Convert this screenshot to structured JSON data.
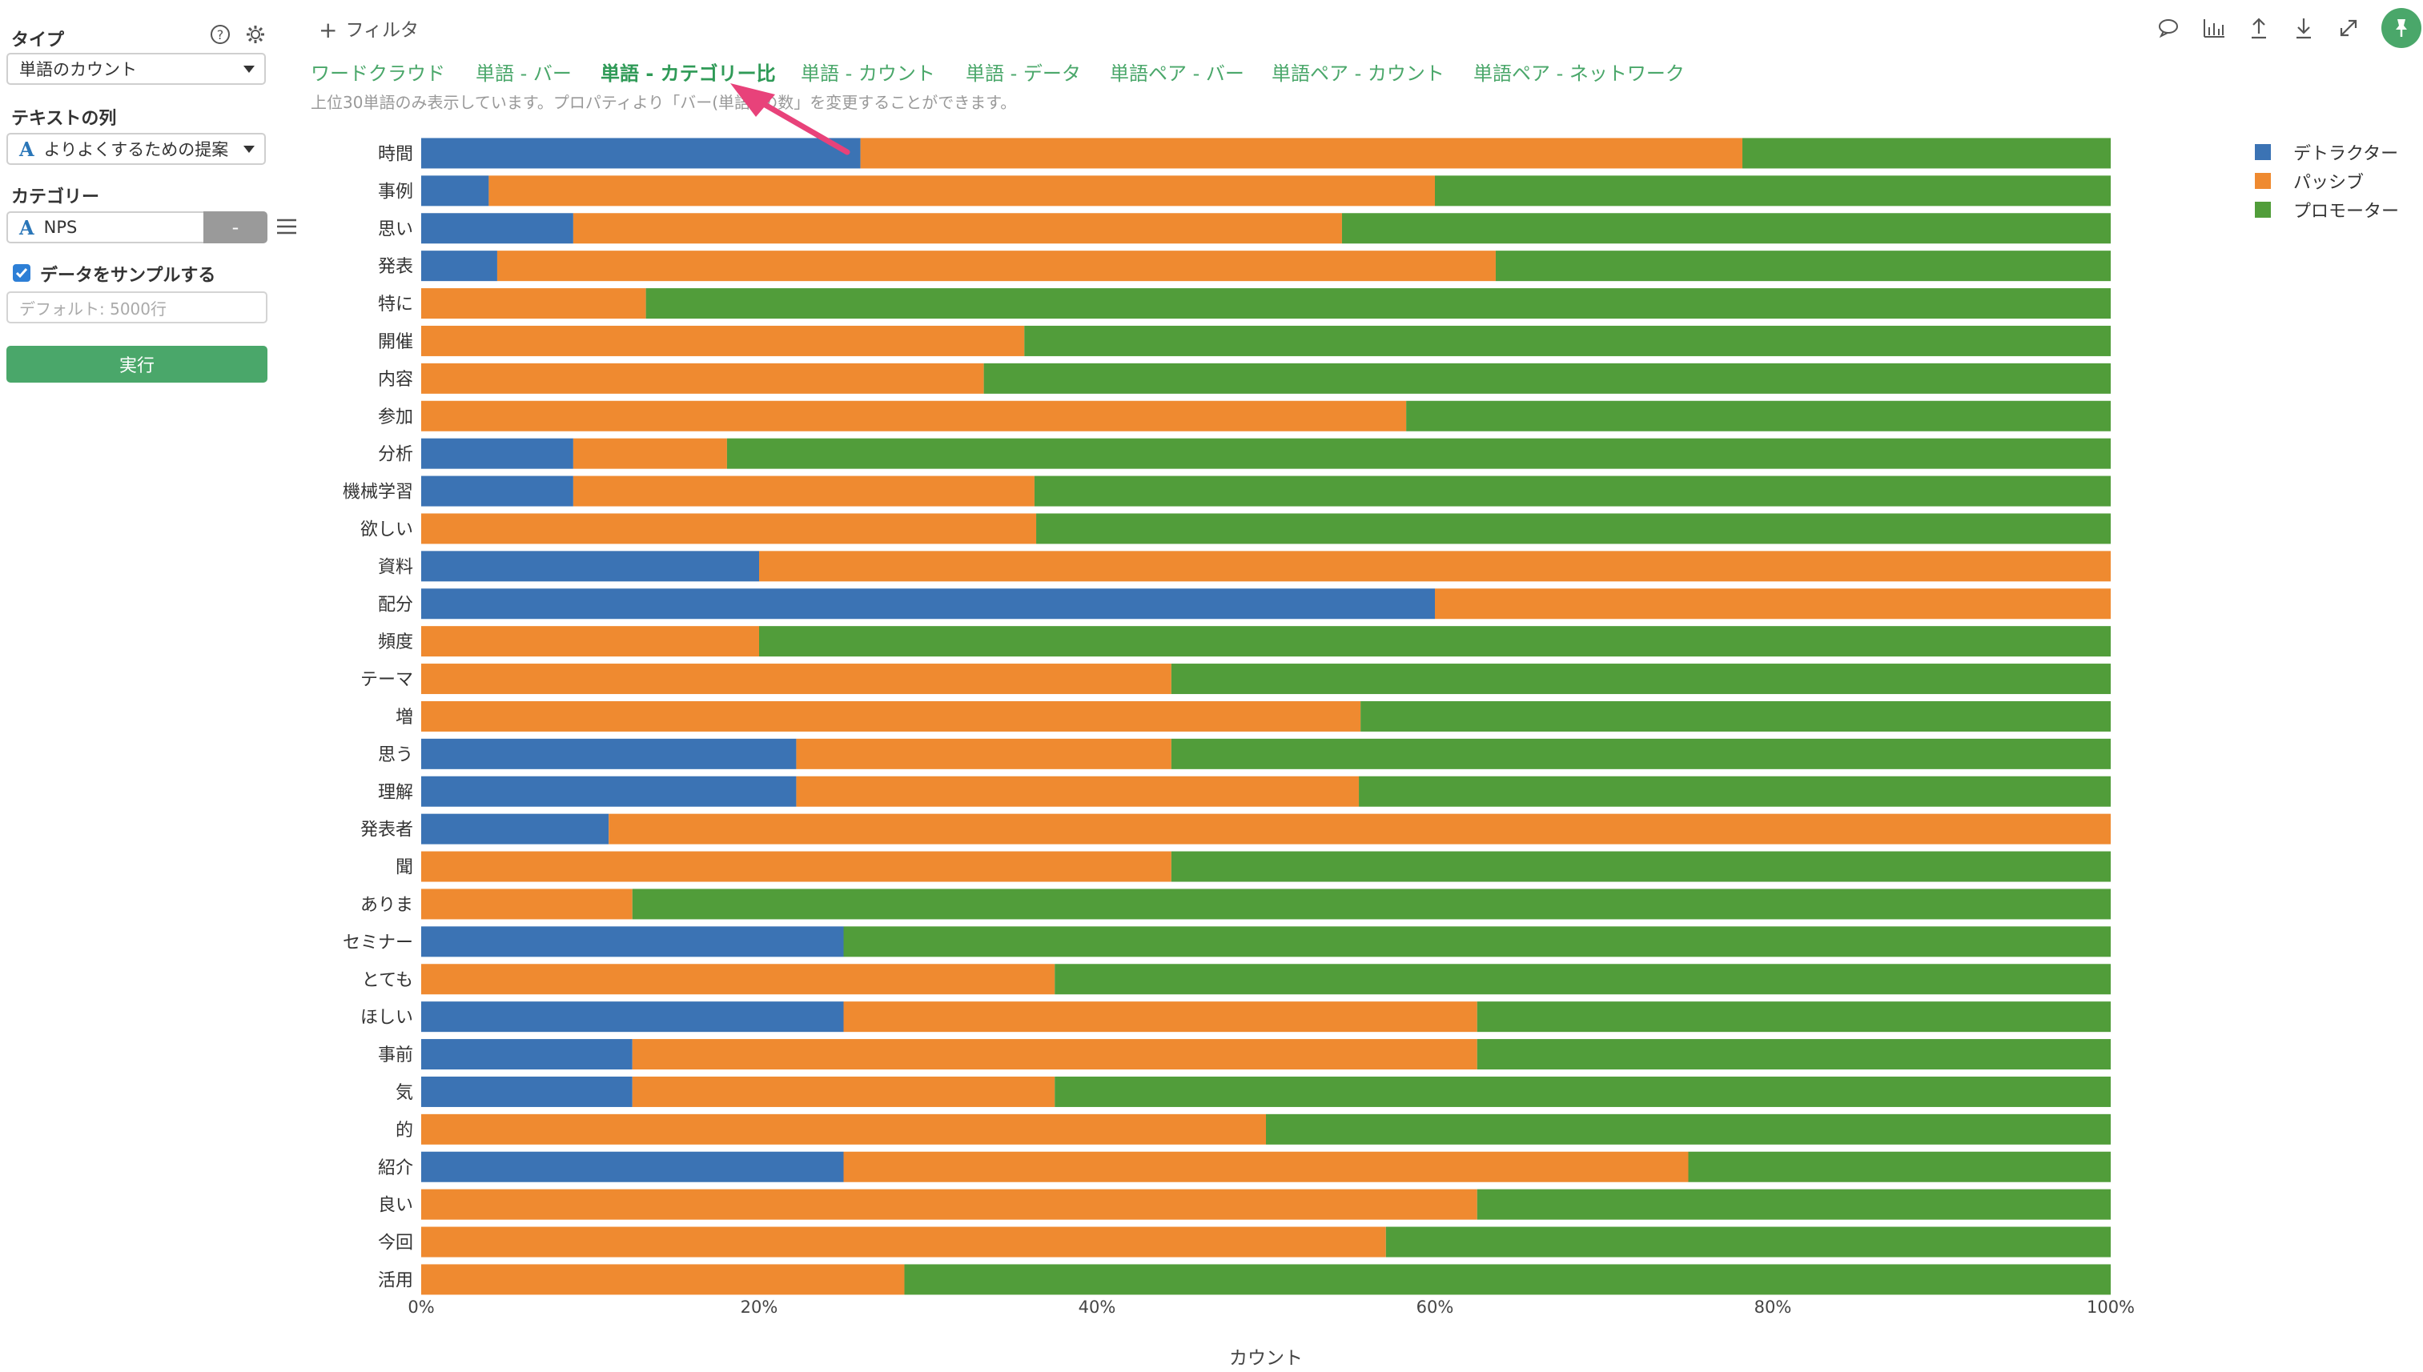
{
  "sidebar": {
    "type_label": "タイプ",
    "type_value": "単語のカウント",
    "text_col_label": "テキストの列",
    "text_col_value": "よりよくするための提案",
    "category_label": "カテゴリー",
    "category_value": "NPS",
    "category_minus": "-",
    "sample_label": "データをサンプルする",
    "sample_placeholder": "デフォルト: 5000行",
    "run_label": "実行"
  },
  "header": {
    "filter_label": "フィルタ",
    "tabs": [
      {
        "label": "ワードクラウド"
      },
      {
        "label": "単語 - バー"
      },
      {
        "label": "単語 - カテゴリー比"
      },
      {
        "label": "単語 - カウント"
      },
      {
        "label": "単語 - データ"
      },
      {
        "label": "単語ペア - バー"
      },
      {
        "label": "単語ペア - カウント"
      },
      {
        "label": "単語ペア - ネットワーク"
      }
    ],
    "active_tab": 2,
    "note": "上位30単語のみ表示しています。プロパティより「バー(単語) の数」を変更することができます。"
  },
  "colors": {
    "accent": "#4aa76a",
    "detractor": "#3b73b4",
    "passive": "#ef8a30",
    "promoter": "#519d3a",
    "annotation_arrow": "#e8427a"
  },
  "icons": [
    "comment-icon",
    "chart-icon",
    "upload-icon",
    "download-icon",
    "expand-icon",
    "pin-icon",
    "help-icon",
    "gear-icon",
    "menu-icon",
    "text-column-icon"
  ],
  "chart_data": {
    "type": "bar",
    "orientation": "horizontal",
    "stacked": true,
    "normalized": true,
    "categories": [
      "時間",
      "事例",
      "思い",
      "発表",
      "特に",
      "開催",
      "内容",
      "参加",
      "分析",
      "機械学習",
      "欲しい",
      "資料",
      "配分",
      "頻度",
      "テーマ",
      "増",
      "思う",
      "理解",
      "発表者",
      "聞",
      "ありま",
      "セミナー",
      "とても",
      "ほしい",
      "事前",
      "気",
      "的",
      "紹介",
      "良い",
      "今回",
      "活用"
    ],
    "series": [
      {
        "name": "デトラクター",
        "color": "#3b73b4",
        "values": [
          26,
          4,
          9,
          4.5,
          0,
          0,
          0,
          0,
          9,
          9,
          0,
          20,
          60,
          0,
          0,
          0,
          22.2,
          22.2,
          11.1,
          0,
          0,
          25,
          0,
          25,
          12.5,
          12.5,
          0,
          25,
          0,
          0,
          0
        ]
      },
      {
        "name": "パッシブ",
        "color": "#ef8a30",
        "values": [
          52.2,
          56,
          45.5,
          59.1,
          13.3,
          35.7,
          33.3,
          58.3,
          9.1,
          27.3,
          36.4,
          80,
          40,
          20,
          44.4,
          55.6,
          22.2,
          33.3,
          88.9,
          44.4,
          12.5,
          0,
          37.5,
          37.5,
          50,
          25,
          50,
          50,
          62.5,
          57.1,
          28.6
        ]
      },
      {
        "name": "プロモーター",
        "color": "#519d3a",
        "values": [
          21.8,
          40,
          45.5,
          36.4,
          86.7,
          64.3,
          66.7,
          41.7,
          81.9,
          63.7,
          63.6,
          0,
          0,
          80,
          55.6,
          44.4,
          55.6,
          44.5,
          0,
          55.6,
          87.5,
          75,
          62.5,
          37.5,
          37.5,
          62.5,
          50,
          25,
          37.5,
          42.9,
          71.4
        ]
      }
    ],
    "xlim": [
      0,
      100
    ],
    "x_ticks": [
      "0%",
      "20%",
      "40%",
      "60%",
      "80%",
      "100%"
    ],
    "xlabel": "カウント",
    "legend_position": "right-top"
  }
}
